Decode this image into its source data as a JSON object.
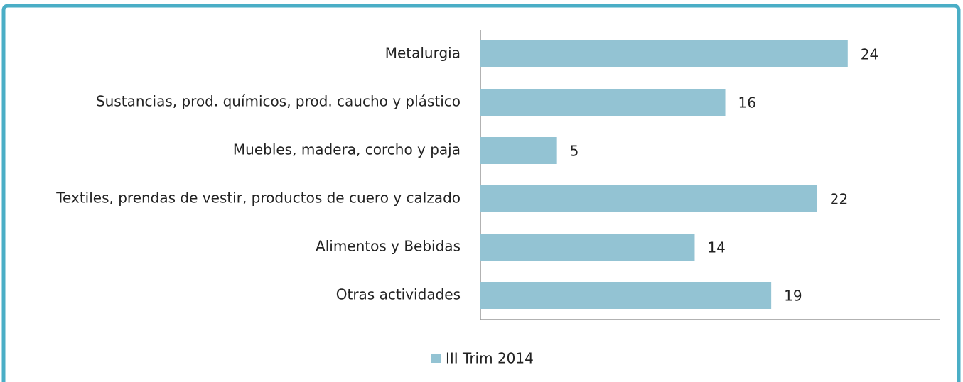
{
  "chart_data": {
    "type": "bar",
    "orientation": "horizontal",
    "categories": [
      "Metalurgia",
      "Sustancias, prod. químicos, prod. caucho y plástico",
      "Muebles, madera, corcho y paja",
      "Textiles, prendas de vestir, productos de cuero y calzado",
      "Alimentos y Bebidas",
      "Otras actividades"
    ],
    "series": [
      {
        "name": "III Trim 2014",
        "color": "#93c3d3",
        "values": [
          24,
          16,
          5,
          22,
          14,
          19
        ]
      }
    ],
    "xlim": [
      0,
      30
    ],
    "legend": "bottom"
  }
}
